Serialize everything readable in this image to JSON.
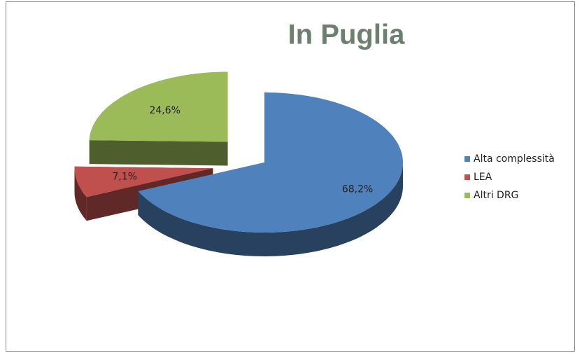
{
  "chart_data": {
    "type": "pie",
    "title": "In Puglia",
    "categories": [
      "Alta complessità",
      "LEA",
      "Altri DRG"
    ],
    "values": [
      68.2,
      7.1,
      24.6
    ],
    "value_labels": [
      "68,2%",
      "7,1%",
      "24,6%"
    ],
    "colors": [
      "#4f81bd",
      "#c0504d",
      "#9bbb59"
    ],
    "legend": "right"
  }
}
